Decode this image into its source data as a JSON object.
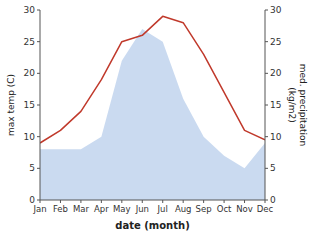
{
  "chart_data": {
    "type": "line",
    "categories": [
      "Jan",
      "Feb",
      "Mar",
      "Apr",
      "May",
      "Jun",
      "Jul",
      "Aug",
      "Sep",
      "Oct",
      "Nov",
      "Dec"
    ],
    "xlabel": "date (month)",
    "ylabel": "max temp (C)",
    "y2label": "med. precipitation\n(kg/m2)",
    "ylim": [
      0,
      30
    ],
    "yticks": [
      0,
      5,
      10,
      15,
      20,
      25,
      30
    ],
    "y2lim": [
      0,
      30
    ],
    "y2ticks": [
      0,
      5,
      10,
      15,
      20,
      25,
      30
    ],
    "grid": false,
    "series": [
      {
        "type": "area",
        "axis": "y2",
        "color": "#aec6e8",
        "values": [
          8,
          8,
          8,
          10,
          22,
          27,
          25,
          16,
          10,
          7,
          5,
          9
        ]
      },
      {
        "type": "line",
        "color": "#c0392b",
        "values": [
          9,
          11,
          14,
          19,
          25,
          26,
          29,
          28,
          23,
          17,
          11,
          9.5
        ]
      }
    ]
  }
}
